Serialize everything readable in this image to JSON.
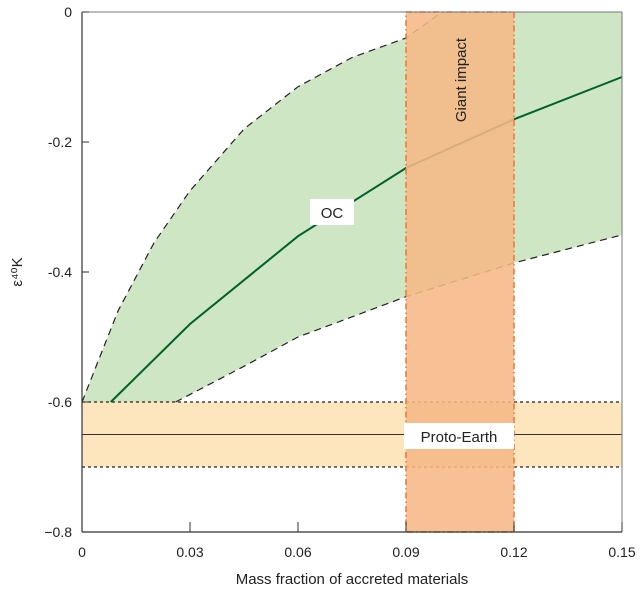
{
  "chart_data": {
    "type": "line",
    "xlabel": "Mass fraction of accreted materials",
    "ylabel": "ε⁴⁰K",
    "xlim": [
      0,
      0.15
    ],
    "ylim": [
      -0.8,
      0
    ],
    "xticks": [
      0,
      0.03,
      0.06,
      0.09,
      0.12,
      0.15
    ],
    "xtick_labels": [
      "0",
      "0.03",
      "0.06",
      "0.09",
      "0.12",
      "0.15"
    ],
    "yticks": [
      0,
      -0.2,
      -0.4,
      -0.6,
      -0.8
    ],
    "ytick_labels": [
      "0",
      "-0.2",
      "-0.4",
      "-0.6",
      "−0.8"
    ],
    "grid": false,
    "oc": {
      "label": "OC",
      "central": [
        [
          0.008,
          -0.6
        ],
        [
          0.03,
          -0.48
        ],
        [
          0.06,
          -0.345
        ],
        [
          0.09,
          -0.24
        ],
        [
          0.12,
          -0.165
        ],
        [
          0.15,
          -0.1
        ]
      ],
      "upper": [
        [
          0,
          -0.6
        ],
        [
          0.01,
          -0.46
        ],
        [
          0.02,
          -0.355
        ],
        [
          0.03,
          -0.275
        ],
        [
          0.045,
          -0.18
        ],
        [
          0.06,
          -0.115
        ],
        [
          0.075,
          -0.07
        ],
        [
          0.09,
          -0.04
        ],
        [
          0.1,
          0
        ]
      ],
      "lower": [
        [
          0.026,
          -0.6
        ],
        [
          0.045,
          -0.545
        ],
        [
          0.06,
          -0.5
        ],
        [
          0.09,
          -0.438
        ],
        [
          0.12,
          -0.386
        ],
        [
          0.15,
          -0.343
        ]
      ]
    },
    "proto_earth": {
      "label": "Proto-Earth",
      "value": -0.65,
      "range": [
        -0.7,
        -0.6
      ]
    },
    "giant_impact": {
      "label": "Giant impact",
      "range": [
        0.09,
        0.12
      ]
    },
    "colors": {
      "oc_fill": "#cfe6c5",
      "oc_line": "#00612a",
      "impact_fill": "#f6b886",
      "impact_edge": "#e8773a",
      "proto_fill": "#fde6bd"
    }
  }
}
